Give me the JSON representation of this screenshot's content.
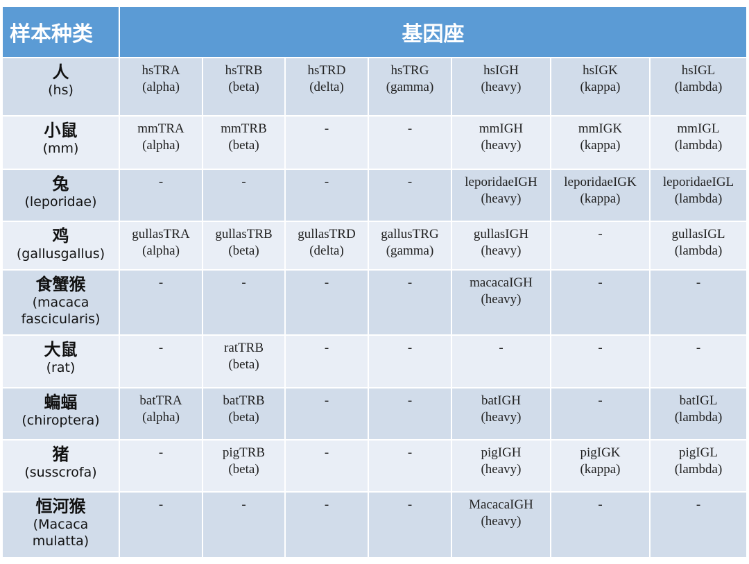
{
  "header": {
    "species_label": "样本种类",
    "locus_label": "基因座"
  },
  "colors": {
    "header": "#5b9bd5",
    "row_odd": "#d1dcea",
    "row_even": "#e9eef6"
  },
  "rows": [
    {
      "cn": "人",
      "latin": "(hs)",
      "cells": [
        [
          "hsTRA",
          "(alpha)"
        ],
        [
          "hsTRB",
          "(beta)"
        ],
        [
          "hsTRD",
          "(delta)"
        ],
        [
          "hsTRG",
          "(gamma)"
        ],
        [
          "hsIGH",
          "(heavy)"
        ],
        [
          "hsIGK",
          "(kappa)"
        ],
        [
          "hsIGL",
          "(lambda)"
        ]
      ]
    },
    {
      "cn": "小鼠",
      "latin": "(mm)",
      "cells": [
        [
          "mmTRA",
          "(alpha)"
        ],
        [
          "mmTRB",
          "(beta)"
        ],
        [
          "-"
        ],
        [
          "-"
        ],
        [
          "mmIGH",
          "(heavy)"
        ],
        [
          "mmIGK",
          "(kappa)"
        ],
        [
          "mmIGL",
          "(lambda)"
        ]
      ]
    },
    {
      "cn": "兔",
      "latin": "(leporidae)",
      "cells": [
        [
          "-"
        ],
        [
          "-"
        ],
        [
          "-"
        ],
        [
          "-"
        ],
        [
          "leporidaeIGH",
          "(heavy)"
        ],
        [
          "leporidaeIGK",
          "(kappa)"
        ],
        [
          "leporidaeIGL",
          "(lambda)"
        ]
      ]
    },
    {
      "cn": "鸡",
      "latin": "(gallusgallus)",
      "cells": [
        [
          "gullasTRA",
          "(alpha)"
        ],
        [
          "gullasTRB",
          "(beta)"
        ],
        [
          "gullasTRD",
          "(delta)"
        ],
        [
          "gallusTRG",
          "(gamma)"
        ],
        [
          "gullasIGH",
          "(heavy)"
        ],
        [
          "-"
        ],
        [
          "gullasIGL",
          "(lambda)"
        ]
      ]
    },
    {
      "cn": "食蟹猴",
      "latin": "(macaca fascicularis)",
      "cells": [
        [
          "-"
        ],
        [
          "-"
        ],
        [
          "-"
        ],
        [
          "-"
        ],
        [
          "macacaIGH",
          "(heavy)"
        ],
        [
          "-"
        ],
        [
          "-"
        ]
      ]
    },
    {
      "cn": "大鼠",
      "latin": "(rat)",
      "cells": [
        [
          "-"
        ],
        [
          "ratTRB",
          "(beta)"
        ],
        [
          "-"
        ],
        [
          "-"
        ],
        [
          "-"
        ],
        [
          "-"
        ],
        [
          "-"
        ]
      ]
    },
    {
      "cn": "蝙蝠",
      "latin": "(chiroptera)",
      "cells": [
        [
          "batTRA",
          "(alpha)"
        ],
        [
          "batTRB",
          "(beta)"
        ],
        [
          "-"
        ],
        [
          "-"
        ],
        [
          "batIGH",
          "(heavy)"
        ],
        [
          "-"
        ],
        [
          "batIGL",
          "(lambda)"
        ]
      ]
    },
    {
      "cn": "猪",
      "latin": "(susscrofa)",
      "cells": [
        [
          "-"
        ],
        [
          "pigTRB",
          "(beta)"
        ],
        [
          "-"
        ],
        [
          "-"
        ],
        [
          "pigIGH",
          "(heavy)"
        ],
        [
          "pigIGK",
          "(kappa)"
        ],
        [
          "pigIGL",
          "(lambda)"
        ]
      ]
    },
    {
      "cn": "恒河猴",
      "latin": "(Macaca mulatta)",
      "cells": [
        [
          "-"
        ],
        [
          "-"
        ],
        [
          "-"
        ],
        [
          "-"
        ],
        [
          "MacacaIGH",
          "(heavy)"
        ],
        [
          "-"
        ],
        [
          "-"
        ]
      ]
    }
  ]
}
